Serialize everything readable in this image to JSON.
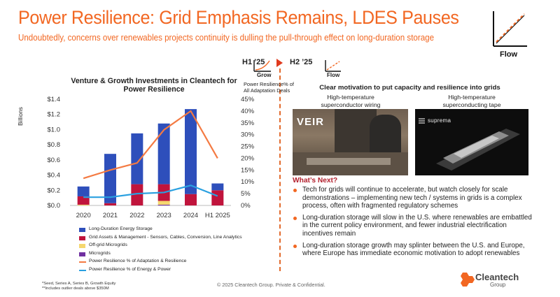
{
  "header": {
    "title": "Power Resilience: Grid Emphasis Remains, LDES Pauses",
    "subtitle": "Undoubtedly, concerns over renewables projects continuity is dulling the pull-through effect on long-duration storage",
    "flow_label": "Flow"
  },
  "timeline": {
    "h1_label": "H1 ’25",
    "h2_label": "H2 ’25",
    "h1_trend": "Grow",
    "h2_trend": "Flow"
  },
  "chart_data": {
    "type": "bar",
    "title": "Venture & Growth Investments in Cleantech for Power Resilience",
    "ylabel": "Billions",
    "y2label": "Power Resilience% of All Adaptation Deals",
    "categories": [
      "2020",
      "2021",
      "2022",
      "2023",
      "2024",
      "H1 2025"
    ],
    "ylim": [
      0,
      1.4
    ],
    "y_ticks": [
      "$0.0",
      "$0.2",
      "$0.4",
      "$0.6",
      "$0.8",
      "$1.0",
      "$1.2",
      "$1.4"
    ],
    "y2lim": [
      0,
      45
    ],
    "y2_ticks": [
      "0%",
      "5%",
      "10%",
      "15%",
      "20%",
      "25%",
      "30%",
      "35%",
      "40%",
      "45%"
    ],
    "stacked": true,
    "series": [
      {
        "name": "Microgrids",
        "type": "bar",
        "color": "#7030a0",
        "values": [
          0.0,
          0.0,
          0.0,
          0.01,
          0.0,
          0.0
        ]
      },
      {
        "name": "Off-grid Microgrids",
        "type": "bar",
        "color": "#f5d76e",
        "values": [
          0.01,
          0.0,
          0.0,
          0.05,
          0.0,
          0.0
        ]
      },
      {
        "name": "Grid Assets & Management - Sensors, Cables, Conversion, Line Analytics",
        "type": "bar",
        "color": "#c0143c",
        "values": [
          0.11,
          0.03,
          0.28,
          0.22,
          0.15,
          0.2
        ]
      },
      {
        "name": "Long-Duration Energy Storage",
        "type": "bar",
        "color": "#2e4fbb",
        "values": [
          0.13,
          0.65,
          0.67,
          0.8,
          1.12,
          0.09
        ]
      },
      {
        "name": "Power Resilience % of Adaptation & Resilience",
        "type": "line",
        "axis": "right",
        "color": "#f47a42",
        "values": [
          11.5,
          15,
          18,
          32,
          40,
          20
        ]
      },
      {
        "name": "Power Resilience % of Energy & Power",
        "type": "line",
        "axis": "right",
        "color": "#2aa0e0",
        "values": [
          3.5,
          3.5,
          5,
          5.5,
          8.5,
          4
        ]
      }
    ],
    "legend_order": [
      "Long-Duration Energy Storage",
      "Grid Assets & Management - Sensors, Cables, Conversion, Line Analytics",
      "Off-grid Microgrids",
      "Microgrids",
      "Power Resilience % of Adaptation & Resilience",
      "Power Resilience % of Energy & Power"
    ],
    "legend_placement": "bottom",
    "grid": false
  },
  "footnotes": {
    "line1": "*Seed, Series A, Series B, Growth Equity",
    "line2": "**Includes outlier deals above $350M"
  },
  "copyright": "© 2025 Cleantech Group. Private & Confidential.",
  "right_panel": {
    "heading": "Clear motivation to put capacity and resilience into grids",
    "image1_caption": "High-temperature superconductor wiring",
    "image1_logo": "VEIR",
    "image2_caption": "High-temperature superconducting tape",
    "image2_logo": "suprema",
    "whats_next": "What’s Next?",
    "bullets": [
      "Tech for grids will continue to accelerate, but watch closely for scale demonstrations – implementing new tech / systems in grids is a complex process, often with fragmented regulatory schemes",
      "Long-duration storage will slow in the U.S. where renewables are embattled in the current policy environment, and fewer industrial electrification incentives remain",
      "Long-duration storage growth may splinter between the U.S. and Europe, where Europe has immediate economic motivation to adopt renewables"
    ]
  },
  "brand": {
    "name": "Cleantech",
    "sub": "Group"
  },
  "colors": {
    "accent": "#f26722",
    "heading_red": "#b21f2c"
  }
}
